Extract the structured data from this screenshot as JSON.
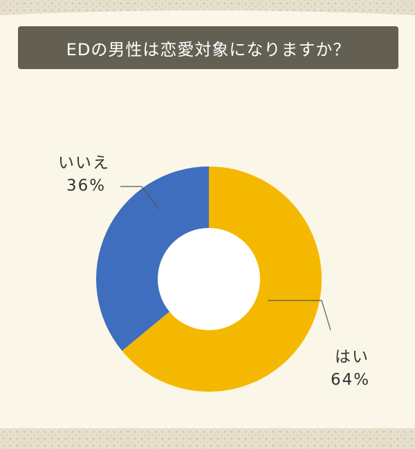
{
  "title": "EDの男性は恋愛対象になりますか？",
  "chart_data": {
    "type": "pie",
    "style": "donut",
    "categories": [
      "はい",
      "いいえ"
    ],
    "values": [
      64,
      36
    ],
    "value_labels": [
      "64%",
      "36%"
    ],
    "colors": [
      "#f5b800",
      "#3f6ebf"
    ],
    "title": "EDの男性は恋愛対象になりますか？"
  }
}
